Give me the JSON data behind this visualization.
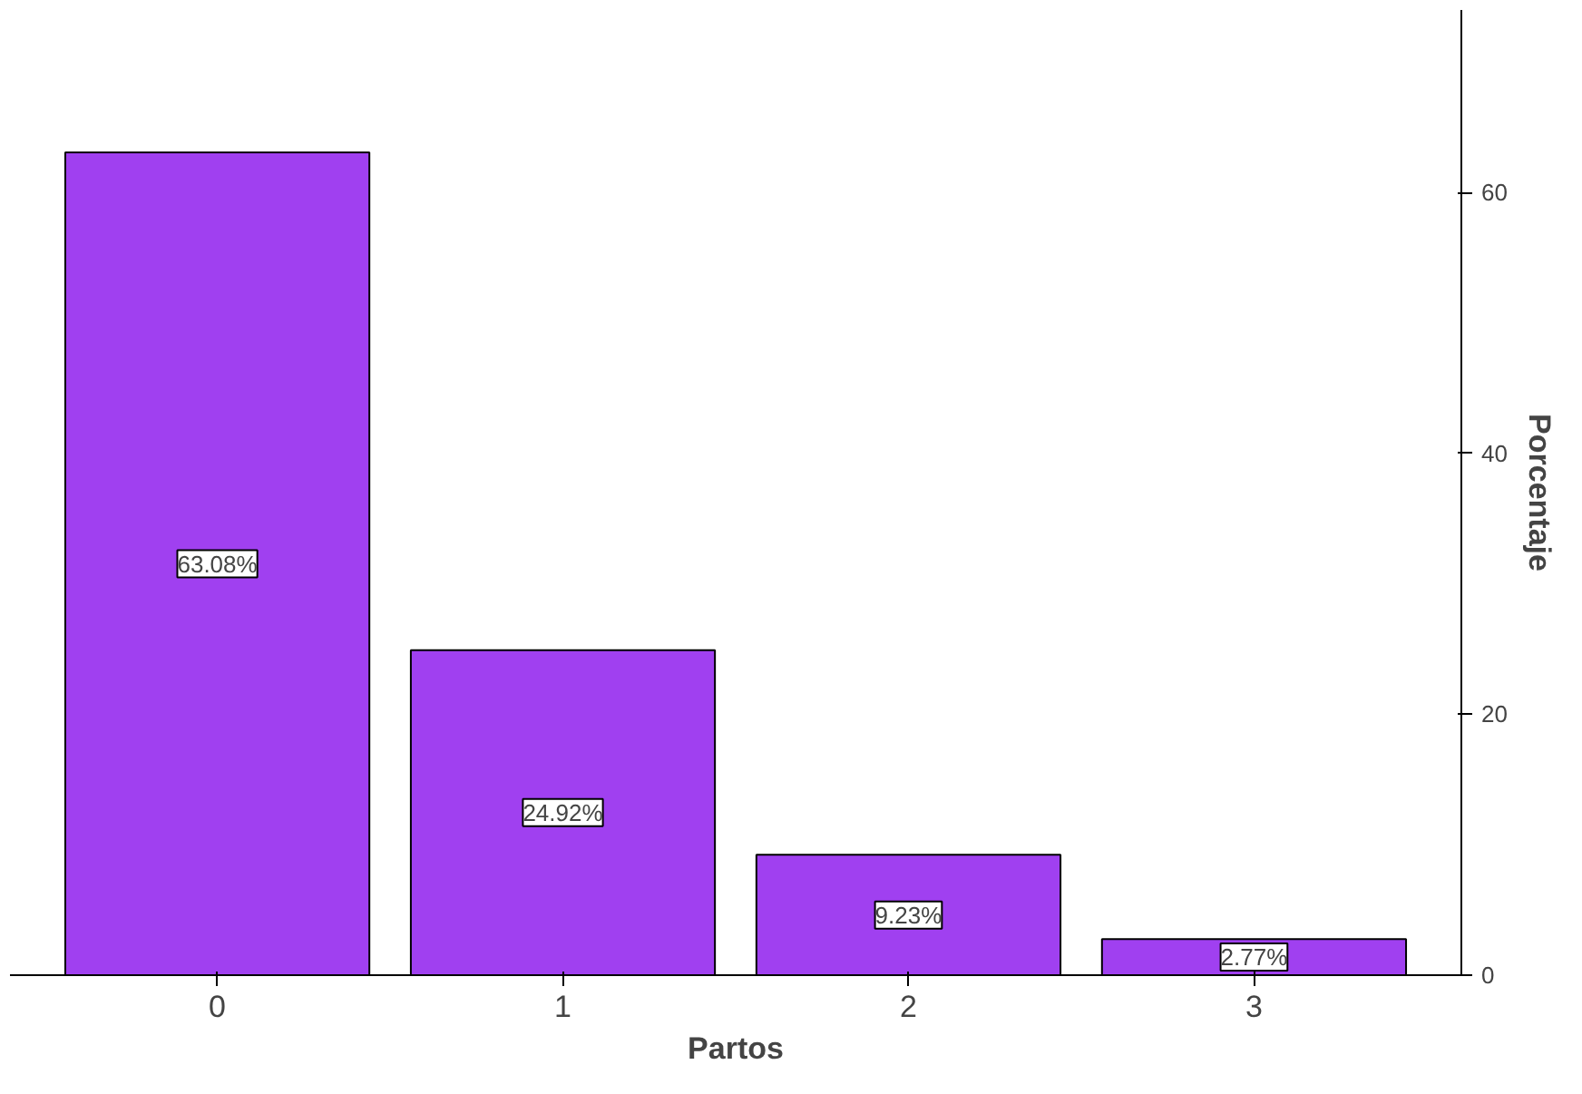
{
  "chart_data": {
    "type": "bar",
    "xlabel": "Partos",
    "ylabel": "Porcentaje",
    "categories": [
      "0",
      "1",
      "2",
      "3"
    ],
    "values": [
      63.08,
      24.92,
      9.23,
      2.77
    ],
    "value_labels": [
      "63.08%",
      "24.92%",
      "9.23%",
      "2.77%"
    ],
    "color": "#a040f0",
    "ylim": [
      0,
      74
    ],
    "yticks": [
      0,
      20,
      40,
      60
    ],
    "grid": false
  }
}
